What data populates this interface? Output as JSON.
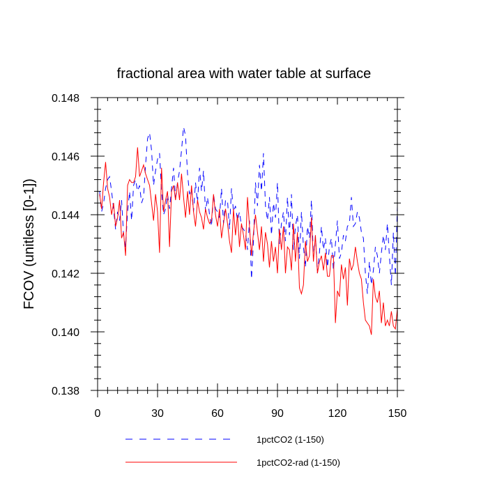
{
  "chart_data": {
    "type": "line",
    "title": "fractional area with water table at surface",
    "xlabel": "",
    "ylabel": "FCOV  (unitless [0-1])",
    "xlim": [
      0,
      150
    ],
    "ylim": [
      0.138,
      0.148
    ],
    "x_ticks": [
      0,
      30,
      60,
      90,
      120,
      150
    ],
    "x_tick_labels": [
      "0",
      "30",
      "60",
      "90",
      "120",
      "150"
    ],
    "y_ticks": [
      0.138,
      0.14,
      0.142,
      0.144,
      0.146,
      0.148
    ],
    "y_tick_labels": [
      "0.138",
      "0.140",
      "0.142",
      "0.144",
      "0.146",
      "0.148"
    ],
    "grid": false,
    "legend_position": "bottom",
    "x": [
      1,
      2,
      3,
      4,
      5,
      6,
      7,
      8,
      9,
      10,
      11,
      12,
      13,
      14,
      15,
      16,
      17,
      18,
      19,
      20,
      21,
      22,
      23,
      24,
      25,
      26,
      27,
      28,
      29,
      30,
      31,
      32,
      33,
      34,
      35,
      36,
      37,
      38,
      39,
      40,
      41,
      42,
      43,
      44,
      45,
      46,
      47,
      48,
      49,
      50,
      51,
      52,
      53,
      54,
      55,
      56,
      57,
      58,
      59,
      60,
      61,
      62,
      63,
      64,
      65,
      66,
      67,
      68,
      69,
      70,
      71,
      72,
      73,
      74,
      75,
      76,
      77,
      78,
      79,
      80,
      81,
      82,
      83,
      84,
      85,
      86,
      87,
      88,
      89,
      90,
      91,
      92,
      93,
      94,
      95,
      96,
      97,
      98,
      99,
      100,
      101,
      102,
      103,
      104,
      105,
      106,
      107,
      108,
      109,
      110,
      111,
      112,
      113,
      114,
      115,
      116,
      117,
      118,
      119,
      120,
      121,
      122,
      123,
      124,
      125,
      126,
      127,
      128,
      129,
      130,
      131,
      132,
      133,
      134,
      135,
      136,
      137,
      138,
      139,
      140,
      141,
      142,
      143,
      144,
      145,
      146,
      147,
      148,
      149,
      150
    ],
    "series": [
      {
        "name": "1pctCO2 (1-150)",
        "color": "#0000ff",
        "dash": "dashed",
        "values": [
          0.1448,
          0.1441,
          0.1444,
          0.1449,
          0.1452,
          0.1453,
          0.1448,
          0.1442,
          0.1435,
          0.1441,
          0.1438,
          0.1445,
          0.1433,
          0.1429,
          0.1441,
          0.1448,
          0.1438,
          0.145,
          0.1452,
          0.1448,
          0.145,
          0.1444,
          0.1446,
          0.1457,
          0.1466,
          0.1468,
          0.1462,
          0.145,
          0.1455,
          0.1459,
          0.1461,
          0.1448,
          0.144,
          0.1442,
          0.1447,
          0.1442,
          0.1449,
          0.1456,
          0.1446,
          0.1451,
          0.1455,
          0.1462,
          0.147,
          0.1467,
          0.1454,
          0.1447,
          0.1449,
          0.1441,
          0.1451,
          0.1444,
          0.1456,
          0.1448,
          0.1455,
          0.1441,
          0.1446,
          0.144,
          0.1436,
          0.1447,
          0.1442,
          0.1441,
          0.1439,
          0.1449,
          0.1437,
          0.1445,
          0.1445,
          0.1435,
          0.1449,
          0.1441,
          0.1443,
          0.1438,
          0.1441,
          0.1436,
          0.1435,
          0.1434,
          0.1428,
          0.1438,
          0.1418,
          0.1431,
          0.1451,
          0.1443,
          0.1457,
          0.1448,
          0.1461,
          0.1443,
          0.1438,
          0.1446,
          0.1433,
          0.1444,
          0.1439,
          0.1451,
          0.143,
          0.1437,
          0.1441,
          0.1431,
          0.1446,
          0.1433,
          0.1447,
          0.1428,
          0.1436,
          0.144,
          0.1425,
          0.1441,
          0.1429,
          0.1422,
          0.1436,
          0.1432,
          0.1445,
          0.1425,
          0.1433,
          0.142,
          0.1427,
          0.1436,
          0.1428,
          0.1432,
          0.1422,
          0.1429,
          0.1432,
          0.1421,
          0.143,
          0.1438,
          0.1425,
          0.1427,
          0.1433,
          0.1431,
          0.1436,
          0.1437,
          0.1446,
          0.1436,
          0.1437,
          0.1441,
          0.1439,
          0.1434,
          0.1432,
          0.142,
          0.1413,
          0.1424,
          0.1416,
          0.1421,
          0.1429,
          0.1426,
          0.142,
          0.1427,
          0.1433,
          0.1428,
          0.1437,
          0.1426,
          0.1416,
          0.1434,
          0.1419,
          0.1443
        ]
      },
      {
        "name": "1pctCO2-rad (1-150)",
        "color": "#ff0000",
        "dash": "solid",
        "values": [
          0.1447,
          0.1442,
          0.1451,
          0.1458,
          0.1449,
          0.1446,
          0.144,
          0.1444,
          0.1436,
          0.1439,
          0.1445,
          0.1432,
          0.1434,
          0.1426,
          0.145,
          0.1452,
          0.1451,
          0.1451,
          0.1453,
          0.1463,
          0.1453,
          0.1455,
          0.1457,
          0.1454,
          0.1452,
          0.145,
          0.1444,
          0.1438,
          0.1447,
          0.1441,
          0.1427,
          0.1456,
          0.1441,
          0.1445,
          0.1448,
          0.1429,
          0.1448,
          0.145,
          0.1445,
          0.1451,
          0.1445,
          0.1454,
          0.1446,
          0.1439,
          0.1448,
          0.144,
          0.145,
          0.1441,
          0.1436,
          0.1445,
          0.1441,
          0.1439,
          0.1435,
          0.1442,
          0.1439,
          0.1437,
          0.1438,
          0.1447,
          0.144,
          0.1436,
          0.1442,
          0.1432,
          0.1437,
          0.1442,
          0.1437,
          0.1431,
          0.1427,
          0.1442,
          0.1433,
          0.144,
          0.1429,
          0.1437,
          0.1433,
          0.1428,
          0.1446,
          0.1436,
          0.1426,
          0.1434,
          0.144,
          0.1434,
          0.1428,
          0.1436,
          0.1424,
          0.1434,
          0.143,
          0.1422,
          0.1431,
          0.1424,
          0.1429,
          0.142,
          0.1435,
          0.1428,
          0.1436,
          0.142,
          0.1429,
          0.1428,
          0.1421,
          0.1437,
          0.1424,
          0.1434,
          0.1415,
          0.1413,
          0.1416,
          0.1431,
          0.1424,
          0.1426,
          0.1439,
          0.1424,
          0.1433,
          0.142,
          0.1424,
          0.1426,
          0.1421,
          0.1427,
          0.1419,
          0.1419,
          0.1426,
          0.1426,
          0.1403,
          0.1414,
          0.1412,
          0.1423,
          0.1418,
          0.1422,
          0.1409,
          0.1425,
          0.1421,
          0.1423,
          0.1429,
          0.1424,
          0.142,
          0.1418,
          0.141,
          0.1404,
          0.1403,
          0.1402,
          0.1399,
          0.1418,
          0.1412,
          0.141,
          0.1414,
          0.1403,
          0.141,
          0.1402,
          0.1404,
          0.1402,
          0.1407,
          0.1402,
          0.1401,
          0.1408
        ]
      }
    ]
  }
}
